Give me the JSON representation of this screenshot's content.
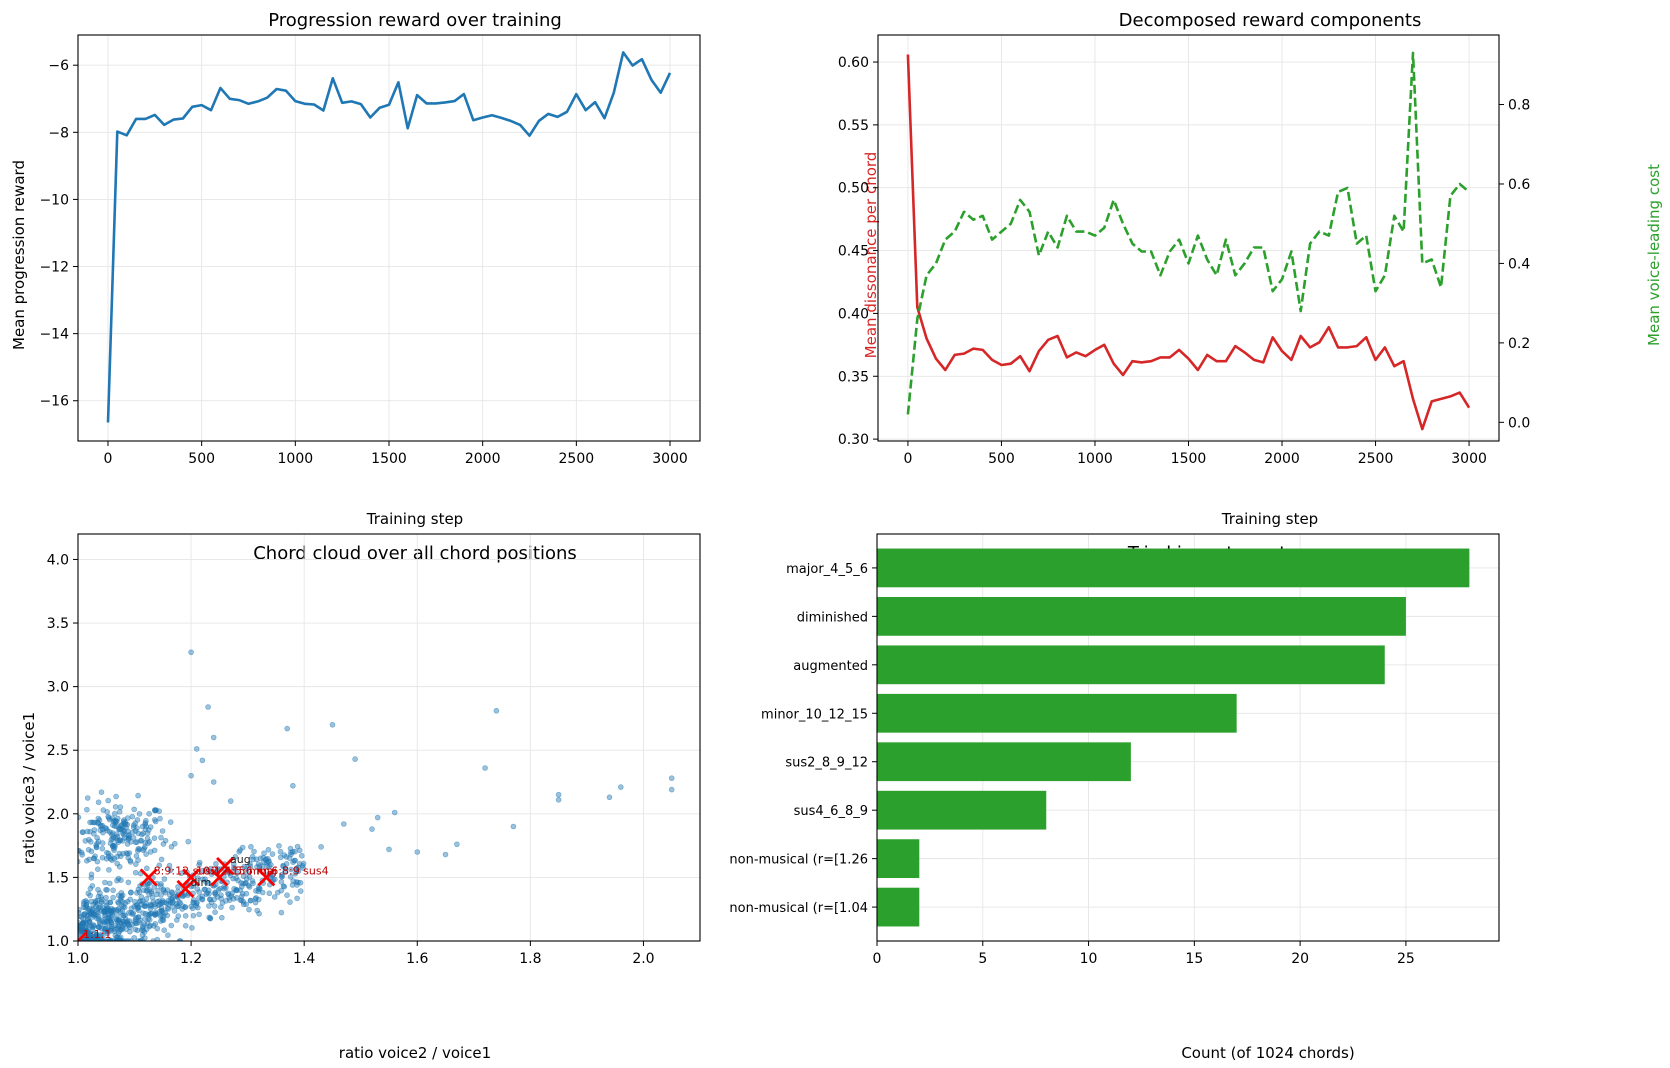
{
  "figure": {
    "panels": 4
  },
  "chart_data": [
    {
      "type": "line",
      "title": "Progression reward over training",
      "xlabel": "Training step",
      "ylabel": "Mean progression reward",
      "xlim": [
        -160,
        3160
      ],
      "ylim": [
        -17.2,
        -5.1
      ],
      "xticks": [
        0,
        500,
        1000,
        1500,
        2000,
        2500,
        3000
      ],
      "yticks": [
        -16,
        -14,
        -12,
        -10,
        -8,
        -6
      ],
      "grid": true,
      "color": "#1f77b4",
      "series": [
        {
          "x": [
            0,
            50,
            100,
            150,
            200,
            250,
            300,
            350,
            400,
            450,
            500,
            550,
            600,
            650,
            700,
            750,
            800,
            850,
            900,
            950,
            1000,
            1050,
            1100,
            1150,
            1200,
            1250,
            1300,
            1350,
            1400,
            1450,
            1500,
            1550,
            1600,
            1650,
            1700,
            1750,
            1800,
            1850,
            1900,
            1950,
            2000,
            2050,
            2100,
            2150,
            2200,
            2250,
            2300,
            2350,
            2400,
            2450,
            2500,
            2550,
            2600,
            2650,
            2700,
            2750,
            2800,
            2850,
            2900,
            2950,
            3000
          ],
          "y": [
            -16.65,
            -7.98,
            -8.09,
            -7.6,
            -7.6,
            -7.48,
            -7.78,
            -7.62,
            -7.59,
            -7.24,
            -7.19,
            -7.34,
            -6.68,
            -7.0,
            -7.04,
            -7.15,
            -7.08,
            -6.97,
            -6.71,
            -6.76,
            -7.07,
            -7.15,
            -7.17,
            -7.35,
            -6.39,
            -7.12,
            -7.08,
            -7.16,
            -7.56,
            -7.27,
            -7.18,
            -6.51,
            -7.88,
            -6.89,
            -7.14,
            -7.14,
            -7.11,
            -7.07,
            -6.86,
            -7.64,
            -7.56,
            -7.49,
            -7.57,
            -7.66,
            -7.78,
            -8.1,
            -7.66,
            -7.45,
            -7.54,
            -7.39,
            -6.86,
            -7.34,
            -7.1,
            -7.58,
            -6.82,
            -5.62,
            -6.01,
            -5.82,
            -6.43,
            -6.82,
            -6.23
          ]
        }
      ]
    },
    {
      "type": "line",
      "title": "Decomposed reward components",
      "xlabel": "Training step",
      "ylabel": "Mean dissonance per chord",
      "y2label": "Mean voice-leading cost",
      "xlim": [
        -160,
        3160
      ],
      "ylim": [
        0.2985,
        0.6215
      ],
      "y2lim": [
        -0.047,
        0.975
      ],
      "xticks": [
        0,
        500,
        1000,
        1500,
        2000,
        2500,
        3000
      ],
      "yticks": [
        0.3,
        0.35,
        0.4,
        0.45,
        0.5,
        0.55,
        0.6
      ],
      "y2ticks": [
        0.0,
        0.2,
        0.4,
        0.6,
        0.8
      ],
      "grid": true,
      "series": [
        {
          "axis": "left",
          "color": "#d62728",
          "style": "solid",
          "x": [
            0,
            50,
            100,
            150,
            200,
            250,
            300,
            350,
            400,
            450,
            500,
            550,
            600,
            650,
            700,
            750,
            800,
            850,
            900,
            950,
            1000,
            1050,
            1100,
            1150,
            1200,
            1250,
            1300,
            1350,
            1400,
            1450,
            1500,
            1550,
            1600,
            1650,
            1700,
            1750,
            1800,
            1850,
            1900,
            1950,
            2000,
            2050,
            2100,
            2150,
            2200,
            2250,
            2300,
            2350,
            2400,
            2450,
            2500,
            2550,
            2600,
            2650,
            2700,
            2750,
            2800,
            2850,
            2900,
            2950,
            3000
          ],
          "y": [
            0.606,
            0.405,
            0.38,
            0.364,
            0.355,
            0.367,
            0.368,
            0.372,
            0.371,
            0.363,
            0.359,
            0.36,
            0.366,
            0.354,
            0.37,
            0.379,
            0.382,
            0.365,
            0.369,
            0.366,
            0.371,
            0.375,
            0.36,
            0.351,
            0.362,
            0.361,
            0.362,
            0.365,
            0.365,
            0.371,
            0.364,
            0.355,
            0.367,
            0.362,
            0.362,
            0.374,
            0.369,
            0.363,
            0.361,
            0.381,
            0.37,
            0.363,
            0.382,
            0.373,
            0.377,
            0.389,
            0.373,
            0.373,
            0.374,
            0.381,
            0.363,
            0.373,
            0.358,
            0.362,
            0.332,
            0.308,
            0.33,
            0.332,
            0.334,
            0.337,
            0.325
          ]
        },
        {
          "axis": "right",
          "color": "#2ca02c",
          "style": "dashed",
          "x": [
            0,
            50,
            100,
            150,
            200,
            250,
            300,
            350,
            400,
            450,
            500,
            550,
            600,
            650,
            700,
            750,
            800,
            850,
            900,
            950,
            1000,
            1050,
            1100,
            1150,
            1200,
            1250,
            1300,
            1350,
            1400,
            1450,
            1500,
            1550,
            1600,
            1650,
            1700,
            1750,
            1800,
            1850,
            1900,
            1950,
            2000,
            2050,
            2100,
            2150,
            2200,
            2250,
            2300,
            2350,
            2400,
            2450,
            2500,
            2550,
            2600,
            2650,
            2700,
            2750,
            2800,
            2850,
            2900,
            2950,
            3000
          ],
          "y": [
            0.02,
            0.26,
            0.37,
            0.4,
            0.46,
            0.48,
            0.53,
            0.51,
            0.52,
            0.46,
            0.48,
            0.5,
            0.56,
            0.53,
            0.42,
            0.48,
            0.44,
            0.52,
            0.48,
            0.48,
            0.47,
            0.49,
            0.56,
            0.5,
            0.45,
            0.43,
            0.43,
            0.37,
            0.43,
            0.46,
            0.4,
            0.47,
            0.41,
            0.37,
            0.46,
            0.37,
            0.4,
            0.44,
            0.44,
            0.33,
            0.36,
            0.43,
            0.28,
            0.45,
            0.48,
            0.47,
            0.58,
            0.59,
            0.45,
            0.47,
            0.33,
            0.37,
            0.52,
            0.48,
            0.93,
            0.4,
            0.41,
            0.34,
            0.57,
            0.6,
            0.58
          ]
        }
      ]
    },
    {
      "type": "scatter",
      "title": "Chord cloud over all chord positions",
      "xlabel": "ratio voice2 / voice1",
      "ylabel": "ratio voice3 / voice1",
      "xlim": [
        1.0,
        2.1
      ],
      "ylim": [
        1.0,
        4.2
      ],
      "xticks": [
        1.0,
        1.2,
        1.4,
        1.6,
        1.8,
        2.0
      ],
      "yticks": [
        1.0,
        1.5,
        2.0,
        2.5,
        3.0,
        3.5,
        4.0
      ],
      "grid": true,
      "point_color": "#1f77b4",
      "n_points": 1024,
      "outliers": [
        [
          1.2,
          3.27
        ],
        [
          1.23,
          2.84
        ],
        [
          1.24,
          2.6
        ],
        [
          1.21,
          2.51
        ],
        [
          1.22,
          2.42
        ],
        [
          1.37,
          2.67
        ],
        [
          1.45,
          2.7
        ],
        [
          1.49,
          2.43
        ],
        [
          1.74,
          2.81
        ],
        [
          1.72,
          2.36
        ],
        [
          1.85,
          2.15
        ],
        [
          1.85,
          2.11
        ],
        [
          1.94,
          2.13
        ],
        [
          1.96,
          2.21
        ],
        [
          2.05,
          2.28
        ],
        [
          2.05,
          2.19
        ],
        [
          1.56,
          2.01
        ],
        [
          1.53,
          1.97
        ],
        [
          1.47,
          1.92
        ],
        [
          1.52,
          1.88
        ],
        [
          1.67,
          1.76
        ],
        [
          1.77,
          1.9
        ],
        [
          1.43,
          1.74
        ],
        [
          1.55,
          1.72
        ],
        [
          1.6,
          1.7
        ],
        [
          1.65,
          1.68
        ],
        [
          1.38,
          2.22
        ],
        [
          1.27,
          2.1
        ],
        [
          1.2,
          2.3
        ],
        [
          1.24,
          2.25
        ]
      ],
      "markers": [
        {
          "label": "1:1:1",
          "x": 1.0,
          "y": 1.0
        },
        {
          "label": "8:9:12 sus2",
          "x": 1.125,
          "y": 1.5
        },
        {
          "label": "dim",
          "x": 1.19,
          "y": 1.41
        },
        {
          "label": "10:12:15 min",
          "x": 1.2,
          "y": 1.5
        },
        {
          "label": "4:5:6 maj",
          "x": 1.25,
          "y": 1.5
        },
        {
          "label": "aug",
          "x": 1.26,
          "y": 1.59
        },
        {
          "label": "6:8:9 sus4",
          "x": 1.333,
          "y": 1.5
        }
      ],
      "marker_color": "#ff0000"
    },
    {
      "type": "bar",
      "orientation": "horizontal",
      "title": "Triad inventory at convergence",
      "xlabel": "Count (of 1024 chords)",
      "categories": [
        "major_4_5_6",
        "diminished",
        "augmented",
        "minor_10_12_15",
        "sus2_8_9_12",
        "sus4_6_8_9",
        "non-musical (r=[1.26",
        "non-musical (r=[1.04"
      ],
      "values": [
        28,
        25,
        24,
        17,
        12,
        8,
        2,
        2
      ],
      "xlim": [
        0,
        29.4
      ],
      "xticks": [
        0,
        5,
        10,
        15,
        20,
        25
      ],
      "grid": true,
      "color": "#2ca02c"
    }
  ]
}
